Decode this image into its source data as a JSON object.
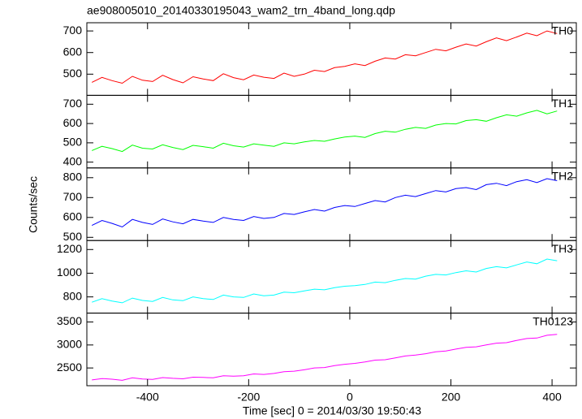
{
  "title": "ae908005010_20140330195043_wam2_trn_4band_long.qdp",
  "xlabel": "Time [sec] 0 = 2014/03/30 19:50:43",
  "ylabel": "Counts/sec",
  "chart_data": [
    {
      "type": "line",
      "xlim": [
        -520,
        448
      ],
      "xticks": [
        -400,
        -200,
        0,
        200,
        400
      ],
      "ylim": [
        402,
        738
      ],
      "yticks": [
        500,
        600,
        700
      ],
      "x": [
        -510,
        -490,
        -470,
        -450,
        -430,
        -410,
        -390,
        -370,
        -350,
        -330,
        -310,
        -290,
        -270,
        -250,
        -230,
        -210,
        -190,
        -170,
        -150,
        -130,
        -110,
        -90,
        -70,
        -50,
        -30,
        -10,
        10,
        30,
        50,
        70,
        90,
        110,
        130,
        150,
        170,
        190,
        210,
        230,
        250,
        270,
        290,
        310,
        330,
        350,
        370,
        390,
        410
      ],
      "series": [
        {
          "name": "TH0",
          "color": "#ff0000",
          "values": [
            462,
            485,
            470,
            458,
            490,
            472,
            466,
            495,
            475,
            460,
            488,
            478,
            470,
            502,
            484,
            474,
            496,
            486,
            480,
            505,
            490,
            500,
            518,
            512,
            530,
            536,
            548,
            540,
            560,
            575,
            570,
            590,
            585,
            600,
            615,
            608,
            625,
            640,
            630,
            650,
            668,
            655,
            672,
            690,
            678,
            700,
            688
          ]
        }
      ]
    },
    {
      "type": "line",
      "xlim": [
        -520,
        448
      ],
      "xticks": [
        -400,
        -200,
        0,
        200,
        400
      ],
      "ylim": [
        370,
        746
      ],
      "yticks": [
        400,
        500,
        600,
        700
      ],
      "x": [
        -510,
        -490,
        -470,
        -450,
        -430,
        -410,
        -390,
        -370,
        -350,
        -330,
        -310,
        -290,
        -270,
        -250,
        -230,
        -210,
        -190,
        -170,
        -150,
        -130,
        -110,
        -90,
        -70,
        -50,
        -30,
        -10,
        10,
        30,
        50,
        70,
        90,
        110,
        130,
        150,
        170,
        190,
        210,
        230,
        250,
        270,
        290,
        310,
        330,
        350,
        370,
        390,
        410
      ],
      "series": [
        {
          "name": "TH1",
          "color": "#00ff00",
          "values": [
            460,
            482,
            470,
            455,
            488,
            472,
            468,
            490,
            476,
            465,
            487,
            480,
            472,
            498,
            485,
            478,
            495,
            488,
            482,
            500,
            495,
            505,
            512,
            508,
            520,
            530,
            535,
            528,
            548,
            560,
            555,
            570,
            580,
            575,
            592,
            600,
            598,
            615,
            620,
            612,
            630,
            645,
            638,
            655,
            668,
            650,
            665
          ]
        }
      ]
    },
    {
      "type": "line",
      "xlim": [
        -520,
        448
      ],
      "xticks": [
        -400,
        -200,
        0,
        200,
        400
      ],
      "ylim": [
        484,
        849
      ],
      "yticks": [
        500,
        600,
        700,
        800
      ],
      "x": [
        -510,
        -490,
        -470,
        -450,
        -430,
        -410,
        -390,
        -370,
        -350,
        -330,
        -310,
        -290,
        -270,
        -250,
        -230,
        -210,
        -190,
        -170,
        -150,
        -130,
        -110,
        -90,
        -70,
        -50,
        -30,
        -10,
        10,
        30,
        50,
        70,
        90,
        110,
        130,
        150,
        170,
        190,
        210,
        230,
        250,
        270,
        290,
        310,
        330,
        350,
        370,
        390,
        410
      ],
      "series": [
        {
          "name": "TH2",
          "color": "#0000ff",
          "values": [
            560,
            585,
            570,
            552,
            590,
            575,
            565,
            592,
            578,
            568,
            590,
            582,
            575,
            600,
            590,
            585,
            605,
            595,
            600,
            620,
            615,
            628,
            640,
            632,
            650,
            660,
            655,
            670,
            685,
            678,
            700,
            712,
            705,
            720,
            735,
            728,
            745,
            750,
            740,
            765,
            772,
            760,
            780,
            790,
            775,
            795,
            785
          ]
        }
      ]
    },
    {
      "type": "line",
      "xlim": [
        -520,
        448
      ],
      "xticks": [
        -400,
        -200,
        0,
        200,
        400
      ],
      "ylim": [
        663,
        1276
      ],
      "yticks": [
        800,
        1000,
        1200
      ],
      "x": [
        -510,
        -490,
        -470,
        -450,
        -430,
        -410,
        -390,
        -370,
        -350,
        -330,
        -310,
        -290,
        -270,
        -250,
        -230,
        -210,
        -190,
        -170,
        -150,
        -130,
        -110,
        -90,
        -70,
        -50,
        -30,
        -10,
        10,
        30,
        50,
        70,
        90,
        110,
        130,
        150,
        170,
        190,
        210,
        230,
        250,
        270,
        290,
        310,
        330,
        350,
        370,
        390,
        410
      ],
      "series": [
        {
          "name": "TH3",
          "color": "#00ffff",
          "values": [
            755,
            785,
            765,
            750,
            790,
            770,
            762,
            795,
            775,
            768,
            800,
            785,
            778,
            815,
            800,
            795,
            825,
            810,
            815,
            840,
            835,
            850,
            865,
            860,
            878,
            890,
            895,
            905,
            925,
            920,
            940,
            955,
            950,
            975,
            990,
            985,
            1005,
            1020,
            1010,
            1040,
            1055,
            1045,
            1070,
            1095,
            1080,
            1120,
            1105
          ]
        }
      ]
    },
    {
      "type": "line",
      "xlim": [
        -520,
        448
      ],
      "xticks": [
        -400,
        -200,
        0,
        200,
        400
      ],
      "ylim": [
        2114,
        3693
      ],
      "yticks": [
        2500,
        3000,
        3500
      ],
      "x": [
        -510,
        -490,
        -470,
        -450,
        -430,
        -410,
        -390,
        -370,
        -350,
        -330,
        -310,
        -290,
        -270,
        -250,
        -230,
        -210,
        -190,
        -170,
        -150,
        -130,
        -110,
        -90,
        -70,
        -50,
        -30,
        -10,
        10,
        30,
        50,
        70,
        90,
        110,
        130,
        150,
        170,
        190,
        210,
        230,
        250,
        270,
        290,
        310,
        330,
        350,
        370,
        390,
        410
      ],
      "series": [
        {
          "name": "TH0123",
          "color": "#ff00ff",
          "values": [
            2240,
            2270,
            2255,
            2230,
            2285,
            2260,
            2250,
            2290,
            2275,
            2265,
            2300,
            2295,
            2285,
            2330,
            2320,
            2330,
            2370,
            2360,
            2380,
            2420,
            2430,
            2460,
            2500,
            2510,
            2550,
            2580,
            2600,
            2630,
            2670,
            2680,
            2720,
            2760,
            2780,
            2810,
            2850,
            2870,
            2910,
            2950,
            2960,
            3000,
            3040,
            3050,
            3100,
            3140,
            3150,
            3210,
            3230
          ]
        }
      ]
    }
  ]
}
